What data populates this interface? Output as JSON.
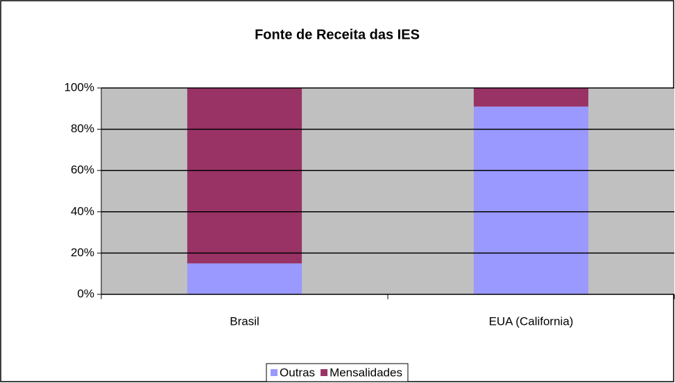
{
  "chart_data": {
    "type": "stacked_bar",
    "title": "Fonte de Receita das IES",
    "categories": [
      "Brasil",
      "EUA (California)"
    ],
    "series": [
      {
        "name": "Outras",
        "color": "#9999ff",
        "values": [
          15,
          91
        ]
      },
      {
        "name": "Mensalidades",
        "color": "#993366",
        "values": [
          85,
          9
        ]
      }
    ],
    "ylim": [
      0,
      100
    ],
    "yticks": [
      {
        "value": 0,
        "label": "0%"
      },
      {
        "value": 20,
        "label": "20%"
      },
      {
        "value": 40,
        "label": "40%"
      },
      {
        "value": 60,
        "label": "60%"
      },
      {
        "value": 80,
        "label": "80%"
      },
      {
        "value": 100,
        "label": "100%"
      }
    ],
    "grid": true,
    "legend": "bottom"
  }
}
